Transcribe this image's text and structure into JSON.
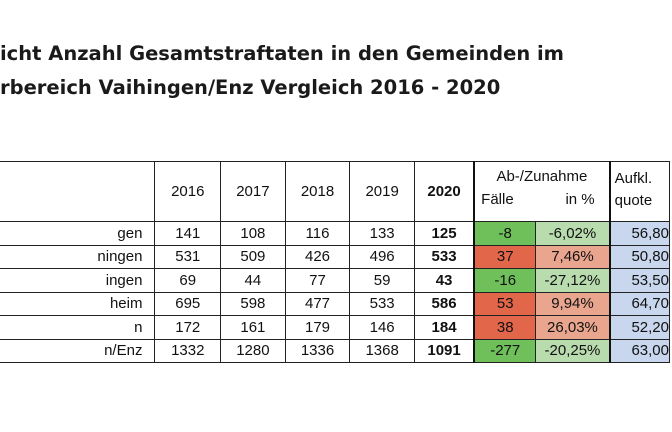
{
  "title": {
    "line1": "icht Anzahl Gesamtstraftaten in den Gemeinden im",
    "line2": "rbereich Vaihingen/Enz Vergleich 2016 - 2020"
  },
  "table": {
    "years": [
      "2016",
      "2017",
      "2018",
      "2019",
      "2020"
    ],
    "change_header": "Ab-/Zunahme",
    "change_cases": "Fälle",
    "change_pct": "in %",
    "quote_header": "Aufkl.",
    "quote_sub": "quote",
    "rows": [
      {
        "name": "gen",
        "y2016": "141",
        "y2017": "108",
        "y2018": "116",
        "y2019": "133",
        "y2020": "125",
        "cases": "-8",
        "pct": "-6,02%",
        "quote": "56,80",
        "trend": "down"
      },
      {
        "name": "ningen",
        "y2016": "531",
        "y2017": "509",
        "y2018": "426",
        "y2019": "496",
        "y2020": "533",
        "cases": "37",
        "pct": "7,46%",
        "quote": "50,80",
        "trend": "up"
      },
      {
        "name": "ingen",
        "y2016": "69",
        "y2017": "44",
        "y2018": "77",
        "y2019": "59",
        "y2020": "43",
        "cases": "-16",
        "pct": "-27,12%",
        "quote": "53,50",
        "trend": "down"
      },
      {
        "name": "heim",
        "y2016": "695",
        "y2017": "598",
        "y2018": "477",
        "y2019": "533",
        "y2020": "586",
        "cases": "53",
        "pct": "9,94%",
        "quote": "64,70",
        "trend": "up"
      },
      {
        "name": "n",
        "y2016": "172",
        "y2017": "161",
        "y2018": "179",
        "y2019": "146",
        "y2020": "184",
        "cases": "38",
        "pct": "26,03%",
        "quote": "52,20",
        "trend": "up"
      },
      {
        "name": "n/Enz",
        "y2016": "1332",
        "y2017": "1280",
        "y2018": "1336",
        "y2019": "1368",
        "y2020": "1091",
        "cases": "-277",
        "pct": "-20,25%",
        "quote": "63,00",
        "trend": "down"
      }
    ]
  },
  "colors": {
    "decrease_cases": "#6fbf5a",
    "increase_cases": "#e2664a",
    "decrease_pct": "#b9dcae",
    "increase_pct": "#eaa58f",
    "quote_fill": "#c9d7ee"
  }
}
